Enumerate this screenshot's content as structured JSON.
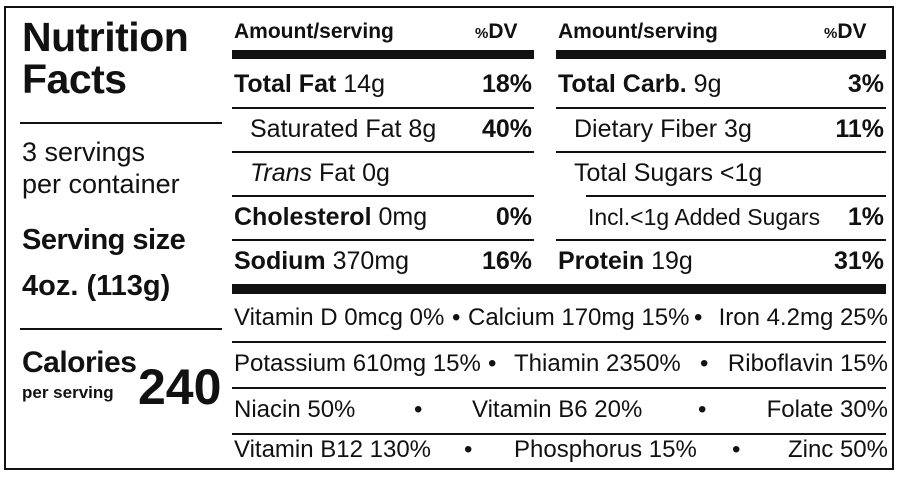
{
  "title_line1": "Nutrition",
  "title_line2": "Facts",
  "servings_line1": "3 servings",
  "servings_line2": "per container",
  "serving_size_label": "Serving size",
  "serving_size_value": "4oz. (113g)",
  "calories_label": "Calories",
  "calories_sub": "per serving",
  "calories_value": "240",
  "header": {
    "amount": "Amount/serving",
    "dv_symbol": "%",
    "dv": "DV"
  },
  "left_rows": [
    {
      "name": "Total Fat",
      "amount": "14g",
      "dv": "18%"
    },
    {
      "name": "Saturated Fat 8g",
      "amount": "",
      "dv": "40%"
    },
    {
      "name_italic": "Trans",
      "name": "Fat 0g",
      "amount": "",
      "dv": ""
    },
    {
      "name": "Cholesterol",
      "amount": "0mg",
      "dv": "0%"
    },
    {
      "name": "Sodium",
      "amount": "370mg",
      "dv": "16%"
    }
  ],
  "right_rows": [
    {
      "name": "Total Carb.",
      "amount": "9g",
      "dv": "3%"
    },
    {
      "name": "Dietary Fiber 3g",
      "amount": "",
      "dv": "11%"
    },
    {
      "name": "Total Sugars <1g",
      "amount": "",
      "dv": ""
    },
    {
      "name": "Incl.<1g Added Sugars",
      "amount": "",
      "dv": "1%"
    },
    {
      "name": "Protein",
      "amount": "19g",
      "dv": "31%"
    }
  ],
  "vitamins": {
    "row1": [
      "Vitamin D 0mcg 0%",
      "•",
      "Calcium 170mg 15%",
      "•",
      "Iron 4.2mg 25%"
    ],
    "row2": [
      "Potassium 610mg 15%",
      "•",
      "Thiamin 2350%",
      "•",
      "Riboflavin 15%"
    ],
    "row3": [
      "Niacin 50%",
      "•",
      "Vitamin B6 20%",
      "•",
      "Folate 30%"
    ],
    "row4": [
      "Vitamin B12 130%",
      "•",
      "Phosphorus 15%",
      "•",
      "Zinc 50%"
    ]
  }
}
